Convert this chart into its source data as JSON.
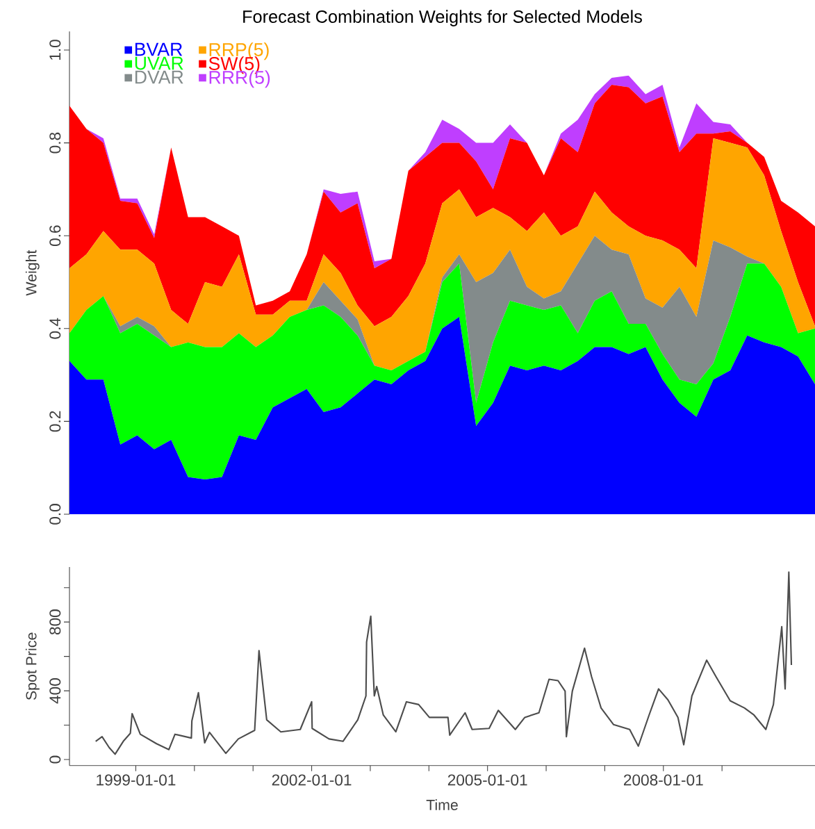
{
  "chart_data": [
    {
      "type": "area",
      "stacked": true,
      "title": "Forecast Combination Weights for Selected Models",
      "ylabel": "Weight",
      "tick_labels": "y",
      "legend": "top left",
      "categories": [
        null,
        null,
        null,
        null,
        null,
        null,
        null,
        null,
        null,
        null,
        null,
        null,
        null,
        null,
        null,
        null,
        null,
        null,
        null,
        null,
        null,
        null,
        null,
        null,
        null,
        null,
        null,
        null,
        null,
        null,
        null,
        null,
        null,
        null,
        null,
        null,
        null,
        null,
        null,
        null,
        null,
        null,
        null,
        null,
        null
      ],
      "ylim": [
        0,
        1.04
      ],
      "yticks": [
        {
          "value": 0,
          "label": "0.0"
        },
        {
          "value": 0.2,
          "label": "0.2"
        },
        {
          "value": 0.4,
          "label": "0.4"
        },
        {
          "value": 0.6,
          "label": "0.6"
        },
        {
          "value": 0.8,
          "label": "0.8"
        },
        {
          "value": 1,
          "label": "1.0"
        }
      ],
      "series": [
        {
          "name": "BVAR",
          "color": "#0000ff",
          "values": [
            0.33,
            0.29,
            0.29,
            0.15,
            0.17,
            0.14,
            0.16,
            0.08,
            0.075,
            0.08,
            0.17,
            0.16,
            0.23,
            0.25,
            0.27,
            0.22,
            0.23,
            0.26,
            0.29,
            0.28,
            0.31,
            0.33,
            0.4,
            0.425,
            0.19,
            0.24,
            0.32,
            0.31,
            0.32,
            0.31,
            0.33,
            0.36,
            0.36,
            0.345,
            0.36,
            0.29,
            0.24,
            0.21,
            0.29,
            0.31,
            0.385,
            0.37,
            0.36,
            0.34,
            0.28
          ]
        },
        {
          "name": "UVAR",
          "color": "#00ff00",
          "values": [
            0.06,
            0.15,
            0.18,
            0.24,
            0.24,
            0.245,
            0.2,
            0.29,
            0.285,
            0.28,
            0.22,
            0.2,
            0.155,
            0.175,
            0.17,
            0.23,
            0.195,
            0.125,
            0.03,
            0.03,
            0.02,
            0.02,
            0.1,
            0.115,
            0.05,
            0.13,
            0.14,
            0.14,
            0.12,
            0.14,
            0.06,
            0.1,
            0.12,
            0.065,
            0.05,
            0.055,
            0.05,
            0.07,
            0.035,
            0.115,
            0.155,
            0.17,
            0.13,
            0.05,
            0.12
          ]
        },
        {
          "name": "DVAR",
          "color": "#838b8b",
          "values": [
            0,
            0,
            0,
            0.015,
            0.015,
            0.02,
            0,
            0,
            0,
            0,
            0,
            0,
            0,
            0,
            0,
            0.05,
            0.035,
            0.035,
            0,
            0,
            0,
            0,
            0.01,
            0.02,
            0.26,
            0.15,
            0.11,
            0.04,
            0.025,
            0.03,
            0.15,
            0.14,
            0.09,
            0.15,
            0.055,
            0.1,
            0.2,
            0.145,
            0.265,
            0.15,
            0.015,
            0,
            0,
            0,
            0
          ]
        },
        {
          "name": "RRP(5)",
          "color": "#ffa500",
          "values": [
            0.14,
            0.12,
            0.14,
            0.165,
            0.145,
            0.135,
            0.08,
            0.04,
            0.14,
            0.13,
            0.17,
            0.07,
            0.045,
            0.035,
            0.02,
            0.06,
            0.06,
            0.03,
            0.085,
            0.115,
            0.14,
            0.19,
            0.16,
            0.14,
            0.14,
            0.14,
            0.07,
            0.12,
            0.185,
            0.12,
            0.08,
            0.095,
            0.08,
            0.06,
            0.135,
            0.145,
            0.08,
            0.105,
            0.22,
            0.225,
            0.235,
            0.19,
            0.12,
            0.11,
            0.005
          ]
        },
        {
          "name": "SW(5)",
          "color": "#ff0000",
          "values": [
            0.35,
            0.27,
            0.19,
            0.105,
            0.1,
            0.055,
            0.35,
            0.23,
            0.14,
            0.13,
            0.04,
            0.02,
            0.03,
            0.02,
            0.1,
            0.135,
            0.13,
            0.22,
            0.125,
            0.125,
            0.27,
            0.23,
            0.13,
            0.1,
            0.12,
            0.04,
            0.17,
            0.19,
            0.08,
            0.21,
            0.16,
            0.19,
            0.275,
            0.3,
            0.285,
            0.31,
            0.21,
            0.29,
            0.01,
            0.025,
            0.01,
            0.04,
            0.065,
            0.15,
            0.215
          ]
        },
        {
          "name": "RRR(5)",
          "color": "#bf3eff",
          "values": [
            0,
            0,
            0.01,
            0.005,
            0.01,
            0.008,
            0,
            0,
            0,
            0,
            0,
            0,
            0,
            0,
            0,
            0.005,
            0.04,
            0.025,
            0.015,
            0,
            0,
            0.01,
            0.05,
            0.03,
            0.04,
            0.1,
            0.03,
            0,
            0,
            0.01,
            0.07,
            0.02,
            0.015,
            0.025,
            0.02,
            0.025,
            0.01,
            0.065,
            0.025,
            0.015,
            0,
            0,
            0,
            0,
            0
          ]
        }
      ]
    },
    {
      "type": "line",
      "xlabel": "Time",
      "ylabel": "Spot Price",
      "x": [
        "1998-04-26",
        "1998-06-05",
        "1998-07-19",
        "1998-08-25",
        "1998-10-15",
        "1998-11-28",
        "1998-12-09",
        "1999-01-29",
        "1999-05-10",
        "1999-07-26",
        "1999-09-02",
        "1999-12-13",
        "1999-12-16",
        "2000-01-26",
        "2000-03-05",
        "2000-04-04",
        "2000-07-15",
        "2000-10-01",
        "2001-01-11",
        "2001-02-07",
        "2001-03-27",
        "2001-06-23",
        "2001-10-22",
        "2002-01-01",
        "2002-01-04",
        "2002-04-19",
        "2002-07-15",
        "2002-10-15",
        "2002-12-05",
        "2002-12-09",
        "2003-01-04",
        "2003-01-26",
        "2003-02-10",
        "2003-03-23",
        "2003-06-09",
        "2003-08-14",
        "2003-10-29",
        "2004-01-04",
        "2004-04-29",
        "2004-05-10",
        "2004-08-14",
        "2004-09-27",
        "2005-01-11",
        "2005-03-09",
        "2005-06-23",
        "2005-08-21",
        "2005-11-17",
        "2006-01-19",
        "2006-03-16",
        "2006-04-29",
        "2006-05-07",
        "2006-06-13",
        "2006-08-28",
        "2006-10-11",
        "2006-12-09",
        "2007-02-25",
        "2007-06-05",
        "2007-07-29",
        "2007-10-04",
        "2007-12-02",
        "2008-01-29",
        "2008-04-01",
        "2008-05-07",
        "2008-06-27",
        "2008-09-27",
        "2008-11-25",
        "2009-02-21",
        "2009-05-21",
        "2009-07-19",
        "2009-10-01",
        "2009-11-17",
        "2010-01-08",
        "2010-01-29",
        "2010-02-21",
        "2010-03-09"
      ],
      "xlim": [
        "1997-11-14",
        "2010-08-03"
      ],
      "xticks": [
        "1999-01-01",
        {
          "value": "2000-01-01",
          "label": null
        },
        {
          "value": "2001-01-01",
          "label": null
        },
        "2002-01-01",
        {
          "value": "2003-01-01",
          "label": null
        },
        {
          "value": "2004-01-01",
          "label": null
        },
        "2005-01-01",
        {
          "value": "2006-01-01",
          "label": null
        },
        {
          "value": "2007-01-01",
          "label": null
        },
        "2008-01-01",
        {
          "value": "2009-01-01",
          "label": null
        }
      ],
      "ylim": [
        -35,
        1120
      ],
      "yticks": [
        0,
        {
          "value": 200,
          "label": null
        },
        400,
        {
          "value": 600,
          "label": null
        },
        800,
        {
          "value": 1000,
          "label": null
        }
      ],
      "series": [
        {
          "color": "#4d4d4d",
          "values": [
            106,
            133,
            70,
            31,
            106,
            153,
            267,
            147,
            92,
            58,
            147,
            125,
            225,
            389,
            97,
            158,
            36,
            120,
            170,
            634,
            231,
            161,
            175,
            336,
            181,
            120,
            106,
            231,
            370,
            684,
            834,
            370,
            425,
            259,
            161,
            336,
            320,
            245,
            245,
            142,
            272,
            175,
            181,
            286,
            175,
            245,
            272,
            467,
            459,
            398,
            133,
            398,
            648,
            481,
            300,
            203,
            175,
            78,
            259,
            411,
            348,
            245,
            86,
            370,
            578,
            481,
            342,
            300,
            259,
            175,
            320,
            773,
            411,
            1090,
            550
          ]
        }
      ]
    }
  ]
}
